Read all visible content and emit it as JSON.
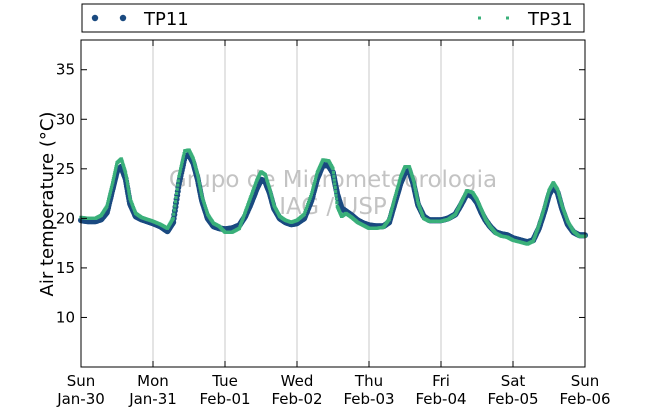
{
  "chart_data": {
    "type": "scatter",
    "ylabel": "Air temperature (°C)",
    "xlabel": "",
    "title": "",
    "watermark": [
      "Grupo de Micrometeorologia",
      "IAG / USP"
    ],
    "ylim": [
      5,
      38
    ],
    "yticks": [
      10,
      15,
      20,
      25,
      30,
      35
    ],
    "xlim": [
      0,
      7
    ],
    "xticks": [
      {
        "x": 0,
        "day": "Sun",
        "date": "Jan-30"
      },
      {
        "x": 1,
        "day": "Mon",
        "date": "Jan-31"
      },
      {
        "x": 2,
        "day": "Tue",
        "date": "Feb-01"
      },
      {
        "x": 3,
        "day": "Wed",
        "date": "Feb-02"
      },
      {
        "x": 4,
        "day": "Thu",
        "date": "Feb-03"
      },
      {
        "x": 5,
        "day": "Fri",
        "date": "Feb-04"
      },
      {
        "x": 6,
        "day": "Sat",
        "date": "Feb-05"
      },
      {
        "x": 7,
        "day": "Sun",
        "date": "Feb-06"
      }
    ],
    "grid": "vertical",
    "legend_position": "top",
    "series": [
      {
        "name": "TP11",
        "color": "#1a4a80",
        "marker": "dot-large",
        "x": [
          0.0,
          0.1,
          0.2,
          0.28,
          0.36,
          0.44,
          0.5,
          0.56,
          0.62,
          0.68,
          0.76,
          0.84,
          0.92,
          1.0,
          1.1,
          1.2,
          1.28,
          1.36,
          1.44,
          1.5,
          1.56,
          1.62,
          1.68,
          1.76,
          1.84,
          1.92,
          2.0,
          2.1,
          2.2,
          2.28,
          2.36,
          2.44,
          2.5,
          2.56,
          2.62,
          2.68,
          2.76,
          2.84,
          2.92,
          3.0,
          3.1,
          3.2,
          3.28,
          3.36,
          3.44,
          3.5,
          3.56,
          3.62,
          3.68,
          3.76,
          3.84,
          3.92,
          4.0,
          4.1,
          4.2,
          4.28,
          4.36,
          4.44,
          4.5,
          4.56,
          4.62,
          4.68,
          4.76,
          4.84,
          4.92,
          5.0,
          5.1,
          5.2,
          5.28,
          5.36,
          5.44,
          5.5,
          5.56,
          5.62,
          5.68,
          5.76,
          5.84,
          5.92,
          6.0,
          6.1,
          6.2,
          6.28,
          6.36,
          6.44,
          6.5,
          6.56,
          6.62,
          6.68,
          6.76,
          6.84,
          6.92,
          7.0
        ],
        "y": [
          19.8,
          19.7,
          19.7,
          19.9,
          20.6,
          23.0,
          24.8,
          25.2,
          24.0,
          21.5,
          20.2,
          19.9,
          19.7,
          19.5,
          19.2,
          18.7,
          19.6,
          23.5,
          26.2,
          26.4,
          25.6,
          24.0,
          21.8,
          20.0,
          19.2,
          19.0,
          18.9,
          19.0,
          19.3,
          20.2,
          21.5,
          23.0,
          23.9,
          23.7,
          22.6,
          21.0,
          20.0,
          19.6,
          19.4,
          19.5,
          20.0,
          21.8,
          24.0,
          25.4,
          25.3,
          24.6,
          22.4,
          21.0,
          20.7,
          20.3,
          19.8,
          19.5,
          19.3,
          19.2,
          19.2,
          19.6,
          21.6,
          23.6,
          24.6,
          24.8,
          23.4,
          21.4,
          20.2,
          19.8,
          19.8,
          19.8,
          20.0,
          20.4,
          21.4,
          22.5,
          22.2,
          21.6,
          20.6,
          19.8,
          19.2,
          18.6,
          18.4,
          18.3,
          18.0,
          17.8,
          17.6,
          17.8,
          19.0,
          20.8,
          22.4,
          23.2,
          22.6,
          21.0,
          19.4,
          18.6,
          18.3,
          18.3
        ]
      },
      {
        "name": "TP31",
        "color": "#3ab07a",
        "marker": "dot-small",
        "x": [
          0.0,
          0.1,
          0.2,
          0.28,
          0.36,
          0.44,
          0.5,
          0.56,
          0.62,
          0.68,
          0.76,
          0.84,
          0.92,
          1.0,
          1.1,
          1.2,
          1.28,
          1.36,
          1.44,
          1.5,
          1.56,
          1.62,
          1.68,
          1.76,
          1.84,
          1.92,
          2.0,
          2.1,
          2.2,
          2.28,
          2.36,
          2.44,
          2.5,
          2.56,
          2.62,
          2.68,
          2.76,
          2.84,
          2.92,
          3.0,
          3.1,
          3.2,
          3.28,
          3.36,
          3.44,
          3.5,
          3.56,
          3.62,
          3.68,
          3.76,
          3.84,
          3.92,
          4.0,
          4.1,
          4.2,
          4.28,
          4.36,
          4.44,
          4.5,
          4.56,
          4.62,
          4.68,
          4.76,
          4.84,
          4.92,
          5.0,
          5.1,
          5.2,
          5.28,
          5.36,
          5.44,
          5.5,
          5.56,
          5.62,
          5.68,
          5.76,
          5.84,
          5.92,
          6.0,
          6.1,
          6.2,
          6.28,
          6.36,
          6.44,
          6.5,
          6.56,
          6.62,
          6.68,
          6.76,
          6.84,
          6.92,
          7.0
        ],
        "y": [
          20.1,
          20.0,
          20.0,
          20.3,
          21.2,
          23.6,
          25.6,
          26.0,
          24.6,
          22.0,
          20.5,
          20.1,
          19.9,
          19.7,
          19.4,
          19.0,
          20.0,
          24.2,
          26.8,
          26.9,
          26.0,
          24.4,
          22.2,
          20.4,
          19.5,
          19.2,
          18.6,
          18.6,
          19.0,
          20.6,
          22.2,
          23.8,
          24.7,
          24.4,
          23.0,
          21.3,
          20.2,
          19.8,
          19.6,
          19.8,
          20.4,
          22.4,
          24.6,
          25.9,
          25.8,
          25.0,
          21.2,
          20.2,
          20.5,
          20.1,
          19.6,
          19.3,
          19.0,
          19.0,
          19.1,
          19.9,
          22.1,
          24.2,
          25.2,
          25.2,
          23.8,
          21.6,
          20.0,
          19.7,
          19.7,
          19.7,
          19.9,
          20.4,
          21.6,
          22.8,
          22.6,
          21.9,
          20.9,
          19.9,
          19.2,
          18.5,
          18.2,
          18.1,
          17.8,
          17.6,
          17.4,
          17.7,
          19.3,
          21.2,
          22.8,
          23.6,
          22.9,
          21.3,
          19.7,
          18.7,
          18.2,
          18.2
        ]
      }
    ]
  }
}
